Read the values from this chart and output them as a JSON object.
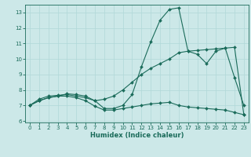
{
  "xlabel": "Humidex (Indice chaleur)",
  "bg_color": "#cce8e8",
  "line_color": "#1a6b5a",
  "grid_color": "#b0d8d8",
  "xlim": [
    -0.5,
    23.5
  ],
  "ylim": [
    5.9,
    13.5
  ],
  "yticks": [
    6,
    7,
    8,
    9,
    10,
    11,
    12,
    13
  ],
  "xticks": [
    0,
    1,
    2,
    3,
    4,
    5,
    6,
    7,
    8,
    9,
    10,
    11,
    12,
    13,
    14,
    15,
    16,
    17,
    18,
    19,
    20,
    21,
    22,
    23
  ],
  "line1_x": [
    0,
    1,
    2,
    3,
    4,
    5,
    6,
    7,
    8,
    9,
    10,
    11,
    12,
    13,
    14,
    15,
    16,
    17,
    18,
    19,
    20,
    21,
    22,
    23
  ],
  "line1_y": [
    7.0,
    7.3,
    7.5,
    7.6,
    7.6,
    7.5,
    7.3,
    6.95,
    6.7,
    6.7,
    6.8,
    6.9,
    7.0,
    7.1,
    7.15,
    7.2,
    7.0,
    6.9,
    6.85,
    6.8,
    6.75,
    6.7,
    6.55,
    6.4
  ],
  "line2_x": [
    0,
    1,
    2,
    3,
    4,
    5,
    6,
    7,
    8,
    9,
    10,
    11,
    12,
    13,
    14,
    15,
    16,
    17,
    18,
    19,
    20,
    21,
    22,
    23
  ],
  "line2_y": [
    7.0,
    7.4,
    7.6,
    7.65,
    7.7,
    7.6,
    7.5,
    7.3,
    7.4,
    7.6,
    8.0,
    8.5,
    9.0,
    9.4,
    9.7,
    10.0,
    10.4,
    10.5,
    10.55,
    10.6,
    10.65,
    10.7,
    10.75,
    6.4
  ],
  "line3_x": [
    0,
    1,
    2,
    3,
    4,
    5,
    6,
    7,
    8,
    9,
    10,
    11,
    12,
    13,
    14,
    15,
    16,
    17,
    18,
    19,
    20,
    21,
    22,
    23
  ],
  "line3_y": [
    7.0,
    7.3,
    7.5,
    7.6,
    7.75,
    7.7,
    7.6,
    7.3,
    6.8,
    6.8,
    7.0,
    7.7,
    9.5,
    11.1,
    12.5,
    13.2,
    13.3,
    10.5,
    10.3,
    9.7,
    10.5,
    10.7,
    8.8,
    7.0
  ]
}
